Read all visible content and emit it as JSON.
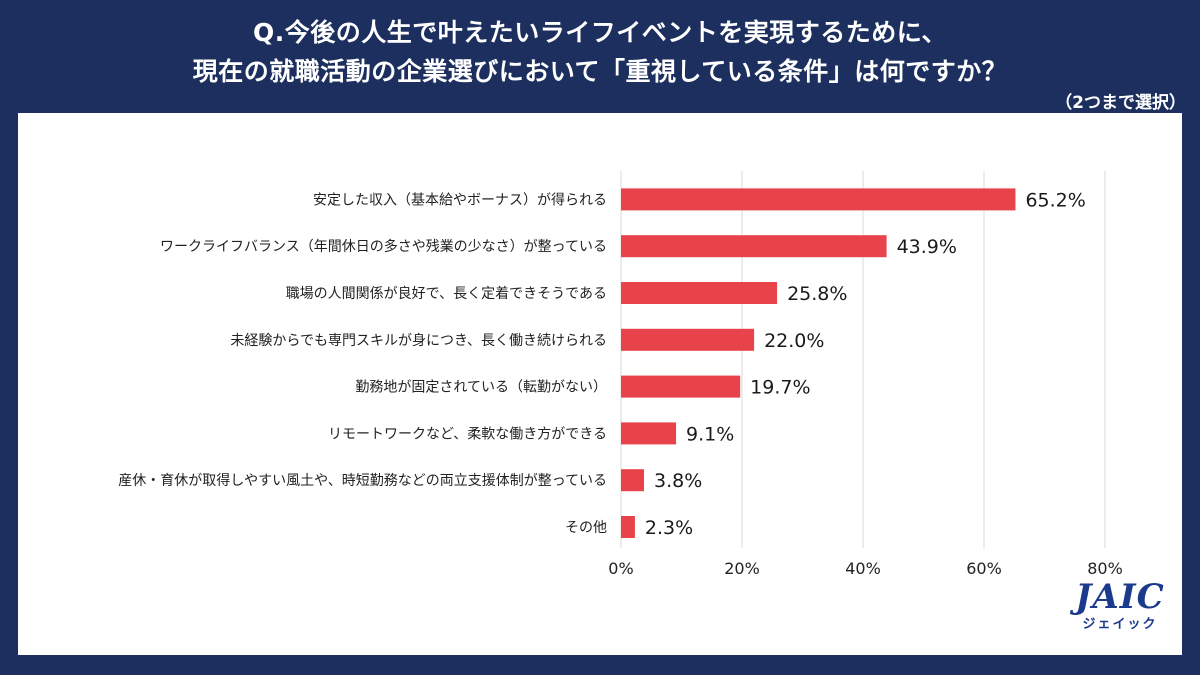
{
  "header": {
    "question_line1": "Q.今後の人生で叶えたいライフイベントを実現するために、",
    "question_line2": "現在の就職活動の企業選びにおいて「重視している条件」は何ですか？",
    "note": "（2つまで選択）"
  },
  "logo": {
    "mark": "JAIC",
    "kana": "ジェイック"
  },
  "colors": {
    "background": "#1c2f5e",
    "bar": "#e8424b",
    "grid": "#d9d9d9"
  },
  "chart_data": {
    "type": "bar",
    "orientation": "horizontal",
    "categories": [
      "安定した収入（基本給やボーナス）が得られる",
      "ワークライフバランス（年間休日の多さや残業の少なさ）が整っている",
      "職場の人間関係が良好で、長く定着できそうである",
      "未経験からでも専門スキルが身につき、長く働き続けられる",
      "勤務地が固定されている（転勤がない）",
      "リモートワークなど、柔軟な働き方ができる",
      "産休・育休が取得しやすい風土や、時短勤務などの両立支援体制が整っている",
      "その他"
    ],
    "values": [
      65.2,
      43.9,
      25.8,
      22.0,
      19.7,
      9.1,
      3.8,
      2.3
    ],
    "value_labels": [
      "65.2%",
      "43.9%",
      "25.8%",
      "22.0%",
      "19.7%",
      "9.1%",
      "3.8%",
      "2.3%"
    ],
    "xlim": [
      0,
      80
    ],
    "xticks": [
      0,
      20,
      40,
      60,
      80
    ],
    "xtick_labels": [
      "0%",
      "20%",
      "40%",
      "60%",
      "80%"
    ],
    "grid": true,
    "legend": false
  }
}
